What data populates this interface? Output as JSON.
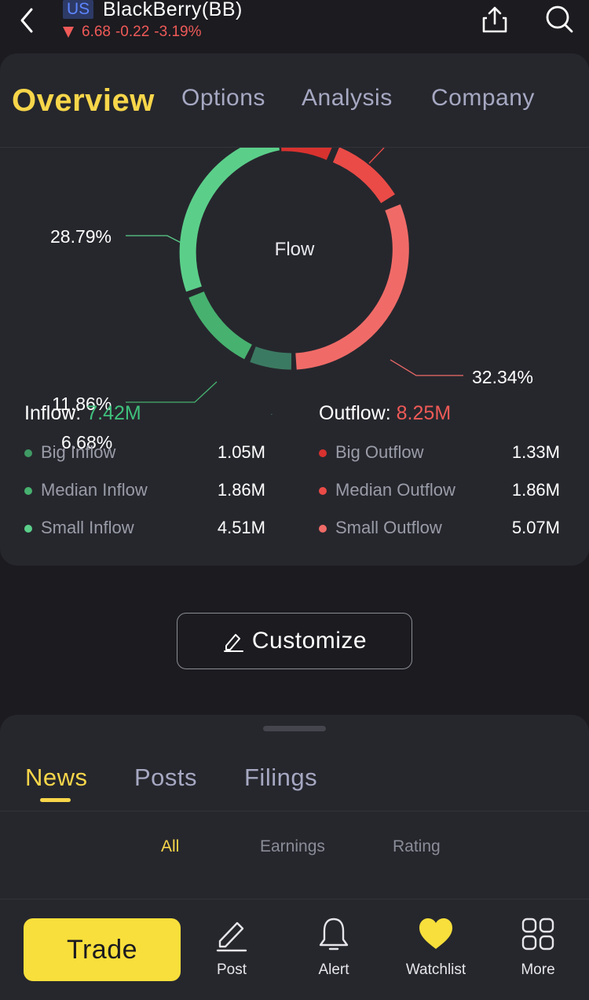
{
  "header": {
    "market": "US",
    "name": "BlackBerry(BB)",
    "price": "6.68",
    "change": "-0.22",
    "change_pct": "-3.19%",
    "icons": [
      "back-arrow-icon",
      "share-icon",
      "search-icon"
    ]
  },
  "tabs": [
    "Overview",
    "Options",
    "Analysis",
    "Company"
  ],
  "active_tab": "Overview",
  "capital_flow": {
    "center_label": "Flow",
    "percent_labels": {
      "big_outflow": "",
      "median_outflow": "",
      "small_outflow": "32.34%",
      "small_inflow": "28.79%",
      "median_inflow": "11.86%",
      "big_inflow": "6.68%"
    },
    "inflow": {
      "label": "Inflow:",
      "total": "7.42M",
      "rows": [
        {
          "label": "Big Inflow",
          "value": "1.05M",
          "color": "#3f9a64"
        },
        {
          "label": "Median Inflow",
          "value": "1.86M",
          "color": "#47b16f"
        },
        {
          "label": "Small Inflow",
          "value": "4.51M",
          "color": "#5bcf8a"
        }
      ]
    },
    "outflow": {
      "label": "Outflow:",
      "total": "8.25M",
      "rows": [
        {
          "label": "Big Outflow",
          "value": "1.33M",
          "color": "#d8322f"
        },
        {
          "label": "Median Outflow",
          "value": "1.86M",
          "color": "#ea4b47"
        },
        {
          "label": "Small Outflow",
          "value": "5.07M",
          "color": "#f06b68"
        }
      ]
    }
  },
  "customize": {
    "label": "Customize",
    "icon": "edit-icon"
  },
  "news": {
    "tabs": [
      "News",
      "Posts",
      "Filings"
    ],
    "active": "News",
    "filters": [
      "All",
      "Earnings",
      "Rating"
    ],
    "active_filter": "All"
  },
  "bottom_bar": {
    "trade_label": "Trade",
    "items": [
      {
        "label": "Post",
        "icon": "pen-icon"
      },
      {
        "label": "Alert",
        "icon": "bell-icon"
      },
      {
        "label": "Watchlist",
        "icon": "heart-icon"
      },
      {
        "label": "More",
        "icon": "grid-icon"
      }
    ]
  },
  "colors": {
    "accent": "#f8d64a",
    "trade_button": "#f8df3b",
    "down": "#ef5a57",
    "up": "#3fc07c"
  }
}
